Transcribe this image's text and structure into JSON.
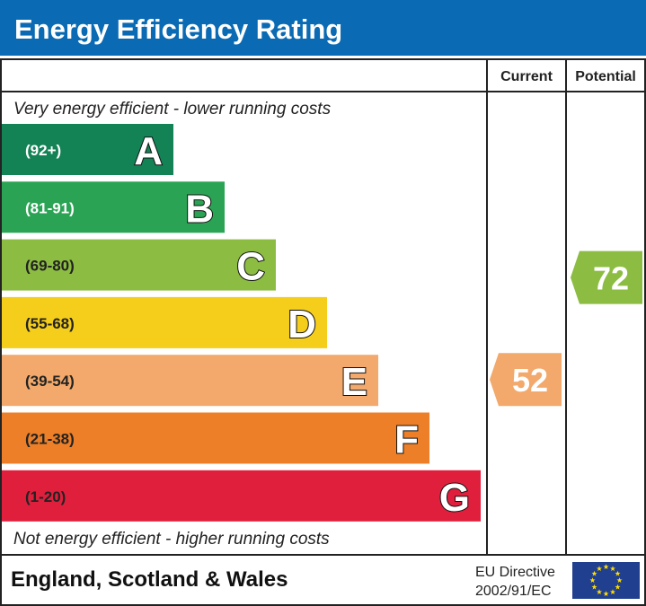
{
  "chart_data": {
    "type": "bar",
    "title": "Energy Efficiency Rating",
    "columns": {
      "current": "Current",
      "potential": "Potential"
    },
    "top_note": "Very energy efficient - lower running costs",
    "bottom_note": "Not energy efficient - higher running costs",
    "bands": [
      {
        "letter": "A",
        "range": "(92+)",
        "color": "#138254",
        "text_color": "#ffffff"
      },
      {
        "letter": "B",
        "range": "(81-91)",
        "color": "#2aa454",
        "text_color": "#ffffff"
      },
      {
        "letter": "C",
        "range": "(69-80)",
        "color": "#8cbd42",
        "text_color": "#222222"
      },
      {
        "letter": "D",
        "range": "(55-68)",
        "color": "#f5cd1b",
        "text_color": "#222222"
      },
      {
        "letter": "E",
        "range": "(39-54)",
        "color": "#f2a96b",
        "text_color": "#222222"
      },
      {
        "letter": "F",
        "range": "(21-38)",
        "color": "#ec7f27",
        "text_color": "#222222"
      },
      {
        "letter": "G",
        "range": "(1-20)",
        "color": "#e01f3d",
        "text_color": "#222222"
      }
    ],
    "current": {
      "value": 52,
      "band": "E",
      "color": "#f2a96b"
    },
    "potential": {
      "value": 72,
      "band": "C",
      "color": "#8cbd42"
    }
  },
  "footer": {
    "region": "England, Scotland & Wales",
    "directive_line1": "EU Directive",
    "directive_line2": "2002/91/EC"
  },
  "colors": {
    "title_bar": "#0a6ab3",
    "eu_flag": "#213f8f",
    "eu_stars": "#ffdd00"
  }
}
